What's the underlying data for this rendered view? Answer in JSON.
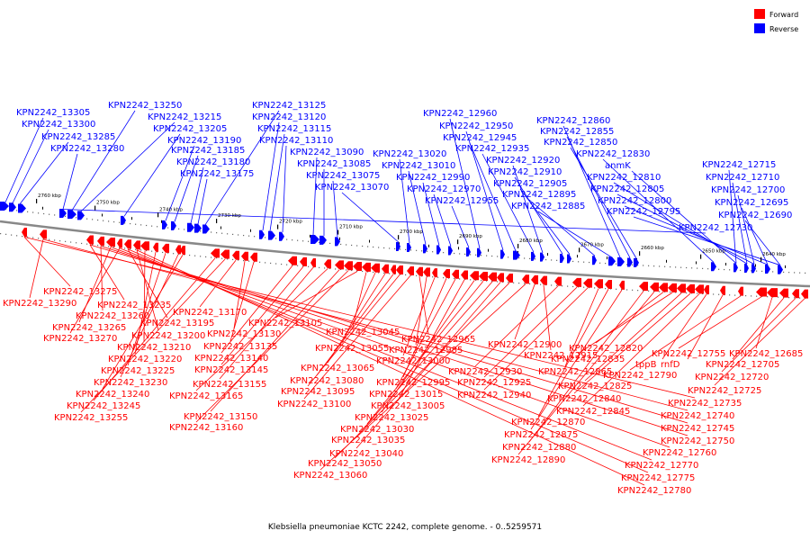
{
  "caption": "Klebsiella pneumoniae KCTC 2242, complete genome. - 0..5259571",
  "legend": [
    {
      "label": "Forward",
      "color": "#ff0000"
    },
    {
      "label": "Reverse",
      "color": "#0000ff"
    }
  ],
  "colors": {
    "forward": "#ff0000",
    "reverse": "#0000ff",
    "backbone": "#888888"
  },
  "scale_labels": [
    "2760 kbp",
    "2750 kbp",
    "2740 kbp",
    "2730 kbp",
    "2720 kbp",
    "2710 kbp",
    "2700 kbp",
    "2690 kbp",
    "2680 kbp",
    "2670 kbp",
    "2660 kbp",
    "2650 kbp",
    "2640 kbp"
  ],
  "reverse_labels": [
    "KPN2242_13305",
    "KPN2242_13300",
    "KPN2242_13285",
    "KPN2242_13280",
    "KPN2242_13250",
    "KPN2242_13215",
    "KPN2242_13205",
    "KPN2242_13190",
    "KPN2242_13185",
    "KPN2242_13180",
    "KPN2242_13175",
    "KPN2242_13125",
    "KPN2242_13120",
    "KPN2242_13115",
    "KPN2242_13110",
    "KPN2242_13090",
    "KPN2242_13085",
    "KPN2242_13075",
    "KPN2242_13070",
    "KPN2242_13020",
    "KPN2242_13010",
    "KPN2242_12990",
    "KPN2242_12970",
    "KPN2242_12955",
    "KPN2242_12960",
    "KPN2242_12950",
    "KPN2242_12945",
    "KPN2242_12935",
    "KPN2242_12920",
    "KPN2242_12910",
    "KPN2242_12905",
    "KPN2242_12895",
    "KPN2242_12885",
    "KPN2242_12860",
    "KPN2242_12855",
    "KPN2242_12850",
    "KPN2242_12830",
    "anmK",
    "KPN2242_12810",
    "KPN2242_12805",
    "KPN2242_12800",
    "KPN2242_12795",
    "KPN2242_12730",
    "KPN2242_12715",
    "KPN2242_12710",
    "KPN2242_12700",
    "KPN2242_12695",
    "KPN2242_12690"
  ],
  "forward_labels": [
    "KPN2242_13275",
    "KPN2242_13290",
    "KPN2242_13235",
    "KPN2242_13260",
    "KPN2242_13265",
    "KPN2242_13270",
    "KPN2242_13195",
    "KPN2242_13200",
    "KPN2242_13210",
    "KPN2242_13220",
    "KPN2242_13225",
    "KPN2242_13230",
    "KPN2242_13240",
    "KPN2242_13245",
    "KPN2242_13255",
    "KPN2242_13170",
    "KPN2242_13130",
    "KPN2242_13135",
    "KPN2242_13140",
    "KPN2242_13145",
    "KPN2242_13155",
    "KPN2242_13165",
    "KPN2242_13150",
    "KPN2242_13160",
    "KPN2242_13105",
    "KPN2242_13045",
    "KPN2242_13055",
    "KPN2242_13065",
    "KPN2242_13080",
    "KPN2242_13095",
    "KPN2242_13100",
    "KPN2242_12965",
    "KPN2242_12985",
    "KPN2242_13000",
    "KPN2242_12995",
    "KPN2242_13015",
    "KPN2242_13005",
    "KPN2242_13025",
    "KPN2242_13030",
    "KPN2242_13035",
    "KPN2242_13040",
    "KPN2242_13050",
    "KPN2242_13060",
    "KPN2242_12900",
    "KPN2242_12915",
    "KPN2242_12930",
    "KPN2242_12925",
    "KPN2242_12940",
    "KPN2242_12865",
    "KPN2242_12870",
    "KPN2242_12875",
    "KPN2242_12880",
    "KPN2242_12890",
    "KPN2242_12820",
    "KPN2242_12835",
    "KPN2242_12825",
    "KPN2242_12840",
    "KPN2242_12845",
    "tppB",
    "rnfD",
    "KPN2242_12790",
    "KPN2242_12755",
    "KPN2242_12685",
    "KPN2242_12705",
    "KPN2242_12720",
    "KPN2242_12725",
    "KPN2242_12735",
    "KPN2242_12740",
    "KPN2242_12745",
    "KPN2242_12750",
    "KPN2242_12760",
    "KPN2242_12770",
    "KPN2242_12775",
    "KPN2242_12780"
  ]
}
